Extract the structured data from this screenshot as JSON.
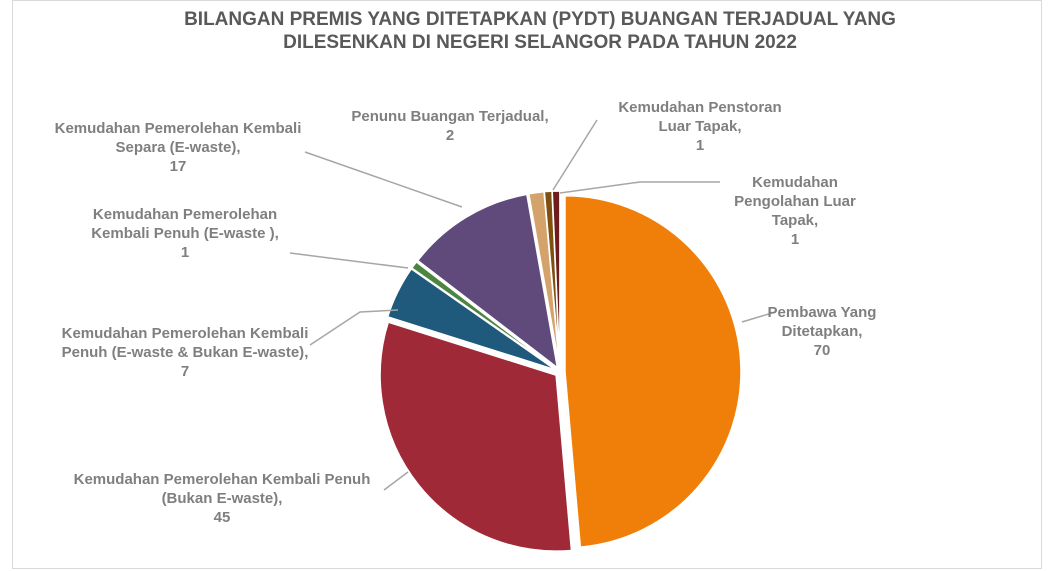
{
  "chart_data": {
    "type": "pie",
    "title": "BILANGAN PREMIS YANG DITETAPKAN (PYDT) BUANGAN TERJADUAL YANG DILESENKAN DI NEGERI SELANGOR PADA TAHUN 2022",
    "categories": [
      "Pembawa Yang Ditetapkan",
      "Kemudahan Pemerolehan Kembali Penuh (Bukan E-waste)",
      "Kemudahan Pemerolehan Kembali Penuh (E-waste & Bukan E-waste)",
      "Kemudahan Pemerolehan Kembali Penuh (E-waste )",
      "Kemudahan Pemerolehan Kembali Separa (E-waste)",
      "Penunu Buangan Terjadual",
      "Kemudahan Penstoran Luar Tapak",
      "Kemudahan Pengolahan Luar Tapak"
    ],
    "values": [
      70,
      45,
      7,
      1,
      17,
      2,
      1,
      1
    ],
    "colors": [
      "#f07f09",
      "#9f2936",
      "#1f5a7d",
      "#4c8540",
      "#604a7b",
      "#d4a36c",
      "#7f4f10",
      "#6e1c1c"
    ]
  }
}
